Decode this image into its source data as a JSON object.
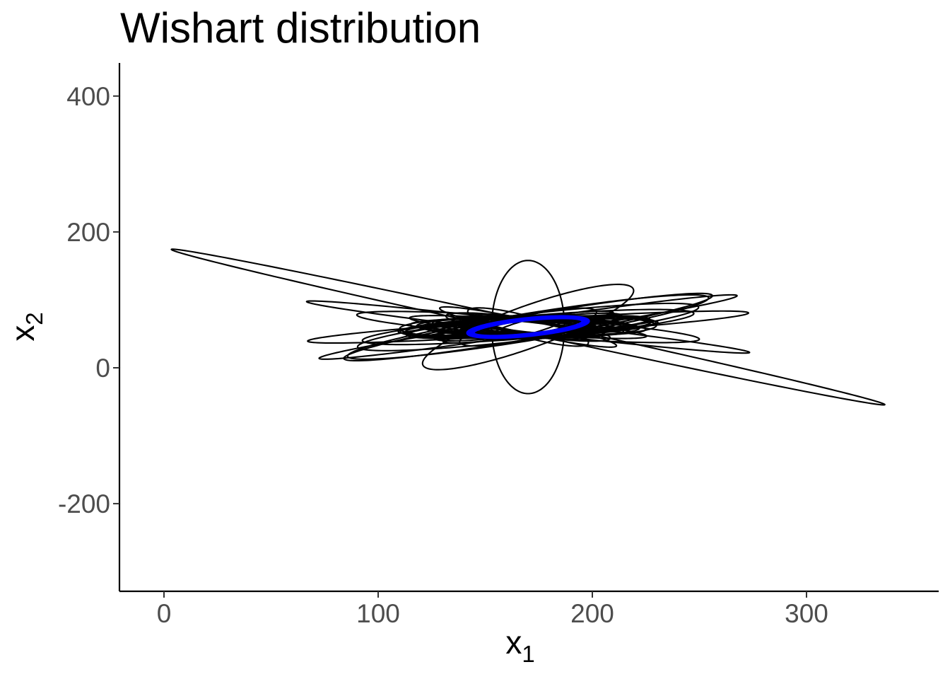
{
  "chart_data": {
    "type": "line",
    "title": "Wishart distribution",
    "xlabel": {
      "base": "x",
      "subscript": "1"
    },
    "ylabel": {
      "base": "x",
      "subscript": "2"
    },
    "xlim": [
      -20,
      360
    ],
    "ylim": [
      -330,
      450
    ],
    "x_ticks": [
      0,
      100,
      200,
      300
    ],
    "y_ticks": [
      -200,
      0,
      200,
      400
    ],
    "x_tick_labels": [
      "0",
      "100",
      "200",
      "300"
    ],
    "y_tick_labels": [
      "-200",
      "0",
      "200",
      "400"
    ],
    "grid": false,
    "legend": "none",
    "center": [
      170,
      60
    ],
    "series_description_units": "each ellipse: center (x, y), semi-axes a and b, rotation angle in degrees; all in data units",
    "ellipses_black": [
      {
        "a": 202.0,
        "b": 8,
        "angle": -34.5
      },
      {
        "a": 77.0,
        "b": 21,
        "angle": 53
      },
      {
        "a": 105.0,
        "b": 11,
        "angle": 11.5
      },
      {
        "a": 85.0,
        "b": 18,
        "angle": 21
      },
      {
        "a": 108.0,
        "b": 10,
        "angle": 25.5
      },
      {
        "a": 80.0,
        "b": 16,
        "angle": 15
      },
      {
        "a": 110.0,
        "b": 8,
        "angle": -20
      },
      {
        "a": 82.0,
        "b": 14,
        "angle": -13
      },
      {
        "a": 61.0,
        "b": 10,
        "angle": 6.6
      },
      {
        "a": 60.0,
        "b": 15,
        "angle": 7
      },
      {
        "a": 58.0,
        "b": 12,
        "angle": 12
      },
      {
        "a": 55.0,
        "b": 12,
        "angle": -4
      },
      {
        "a": 60.0,
        "b": 17,
        "angle": 2.5
      },
      {
        "a": 58.0,
        "b": 14,
        "angle": 8
      },
      {
        "a": 95.0,
        "b": 18,
        "angle": 28
      },
      {
        "a": 98.0,
        "b": 16,
        "angle": 29
      },
      {
        "a": 57.0,
        "b": 10,
        "angle": -14
      },
      {
        "a": 50.0,
        "b": 9,
        "angle": -35
      },
      {
        "a": 42.0,
        "b": 12,
        "angle": -25
      },
      {
        "a": 45.0,
        "b": 11,
        "angle": 28
      },
      {
        "a": 40.0,
        "b": 14,
        "angle": 40
      },
      {
        "a": 38.0,
        "b": 12,
        "angle": -45
      },
      {
        "a": 48.0,
        "b": 13,
        "angle": 2
      },
      {
        "a": 52.0,
        "b": 13,
        "angle": -2
      },
      {
        "a": 35.0,
        "b": 13,
        "angle": 18
      },
      {
        "a": 45.0,
        "b": 12,
        "angle": -8
      },
      {
        "a": 43.0,
        "b": 10,
        "angle": 14
      },
      {
        "a": 40.0,
        "b": 11,
        "angle": 5
      },
      {
        "a": 37.0,
        "b": 12,
        "angle": -18
      },
      {
        "a": 47.0,
        "b": 11,
        "angle": 22
      }
    ],
    "vertical_ellipse": {
      "center": [
        170,
        60
      ],
      "a": 98,
      "b": 17,
      "angle": 90
    },
    "ellipses_blue": [
      {
        "a": 27.0,
        "b": 9.5,
        "angle": 21
      },
      {
        "a": 27.5,
        "b": 10,
        "angle": 21
      },
      {
        "a": 28.0,
        "b": 10.5,
        "angle": 21
      },
      {
        "a": 28.5,
        "b": 11,
        "angle": 21
      },
      {
        "a": 29.0,
        "b": 11.5,
        "angle": 21
      },
      {
        "a": 29.5,
        "b": 12,
        "angle": 21
      },
      {
        "a": 30.0,
        "b": 12.5,
        "angle": 21
      }
    ],
    "colors": {
      "ellipses": "#000000",
      "mean_ellipses": "#0000ff",
      "axis": "#000000",
      "tick_labels": "#4d4d4d"
    }
  }
}
